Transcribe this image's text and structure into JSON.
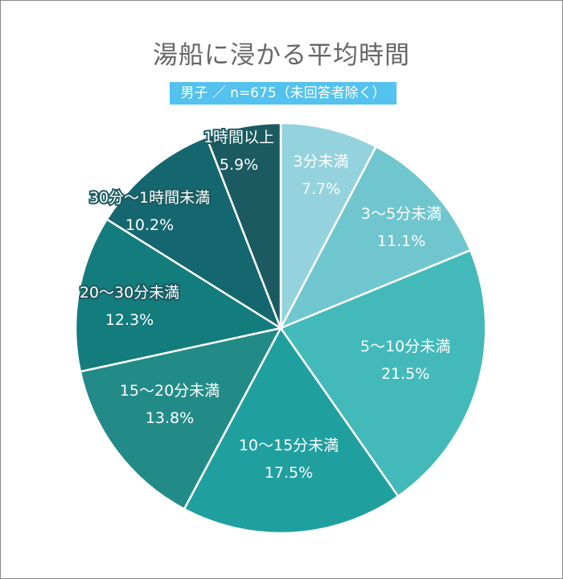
{
  "chart_data": {
    "type": "pie",
    "title": "湯船に浸かる平均時間",
    "subtitle": "男子 ／ n=675（未回答者除く）",
    "start": "top",
    "direction": "clockwise",
    "slices": [
      {
        "label": "3分未満",
        "value": 7.7,
        "value_label": "7.7%",
        "color": "#94d3dd"
      },
      {
        "label": "3〜5分未満",
        "value": 11.1,
        "value_label": "11.1%",
        "color": "#70c6cf"
      },
      {
        "label": "5〜10分未満",
        "value": 21.5,
        "value_label": "21.5%",
        "color": "#44b9ba"
      },
      {
        "label": "10〜15分未満",
        "value": 17.5,
        "value_label": "17.5%",
        "color": "#1fa09f"
      },
      {
        "label": "15〜20分未満",
        "value": 13.8,
        "value_label": "13.8%",
        "color": "#238b87"
      },
      {
        "label": "20〜30分未満",
        "value": 12.3,
        "value_label": "12.3%",
        "color": "#137c7d"
      },
      {
        "label": "30分〜1時間未満",
        "value": 10.2,
        "value_label": "10.2%",
        "color": "#15676f"
      },
      {
        "label": "1時間以上",
        "value": 5.9,
        "value_label": "5.9%",
        "color": "#1a5a60"
      }
    ]
  }
}
